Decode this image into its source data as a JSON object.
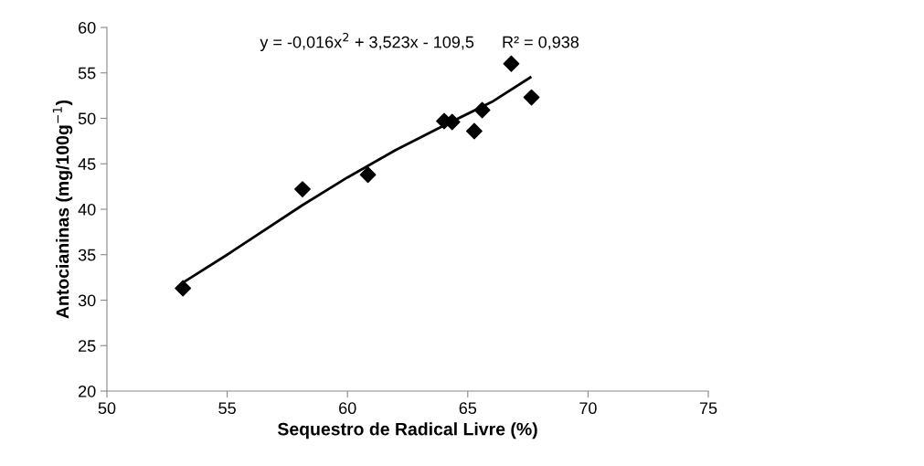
{
  "chart_data": {
    "type": "scatter",
    "xlabel": "Sequestro de Radical Livre (%)",
    "ylabel": "Antocianinas (mg/100g$^{−1}$)",
    "annotations": [
      "y = -0,016x$^{2}$ + 3,523x - 109,5      R² = 0,938"
    ],
    "series": [
      {
        "color": "#000000",
        "marker": "diamond",
        "x": [
          53.16,
          58.13,
          60.85,
          64.02,
          64.35,
          65.27,
          65.6,
          66.81,
          67.65
        ],
        "values": [
          31.3,
          42.2,
          43.8,
          49.7,
          49.6,
          48.6,
          50.9,
          56.0,
          52.3
        ]
      },
      {
        "type": "line",
        "color": "#000000",
        "marker": "none",
        "x": [
          53.2,
          55,
          58.1,
          60,
          62,
          64,
          66,
          67.6
        ],
        "values": [
          32.0,
          35.0,
          40.4,
          43.5,
          46.5,
          49.2,
          51.8,
          54.5
        ]
      }
    ],
    "xlim": [
      50,
      75
    ],
    "xticks": [
      50,
      55,
      60,
      65,
      70,
      75
    ],
    "ylim": [
      20,
      60
    ],
    "yticks": [
      20,
      25,
      30,
      35,
      40,
      45,
      50,
      55,
      60
    ],
    "grid": false,
    "legend": false
  }
}
